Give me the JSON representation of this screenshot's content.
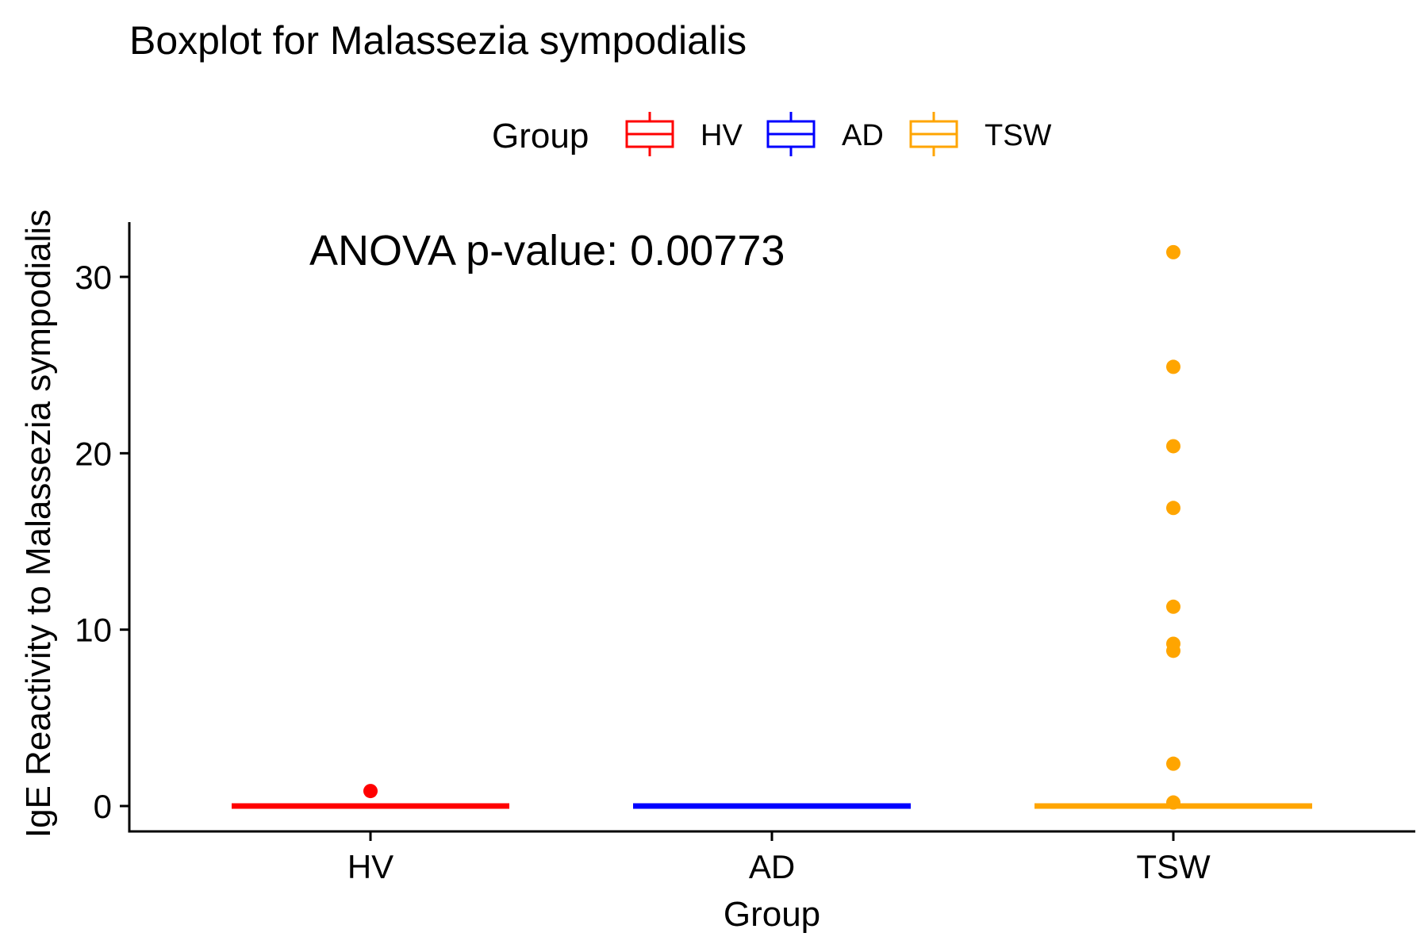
{
  "chart_data": {
    "type": "boxplot",
    "title": "Boxplot for Malassezia sympodialis",
    "xlabel": "Group",
    "ylabel": "IgE Reactivity to Malassezia sympodialis",
    "ylim": [
      -1.5,
      33
    ],
    "yticks": [
      0,
      10,
      20,
      30
    ],
    "categories": [
      "HV",
      "AD",
      "TSW"
    ],
    "legend": {
      "title": "Group",
      "position": "top",
      "entries": [
        "HV",
        "AD",
        "TSW"
      ]
    },
    "annotation": "ANOVA p-value: 0.00773",
    "grid": false,
    "series": [
      {
        "name": "HV",
        "color": "#ff0000",
        "q1": 0,
        "median": 0,
        "q3": 0,
        "whisker_low": 0,
        "whisker_high": 0,
        "outliers": [
          0.85
        ]
      },
      {
        "name": "AD",
        "color": "#0000ff",
        "q1": 0,
        "median": 0,
        "q3": 0,
        "whisker_low": 0,
        "whisker_high": 0,
        "outliers": []
      },
      {
        "name": "TSW",
        "color": "#ffa500",
        "q1": 0,
        "median": 0,
        "q3": 0,
        "whisker_low": 0,
        "whisker_high": 0,
        "outliers": [
          31.4,
          24.9,
          20.4,
          16.9,
          11.3,
          9.2,
          8.8,
          2.4,
          0.2
        ]
      }
    ]
  }
}
